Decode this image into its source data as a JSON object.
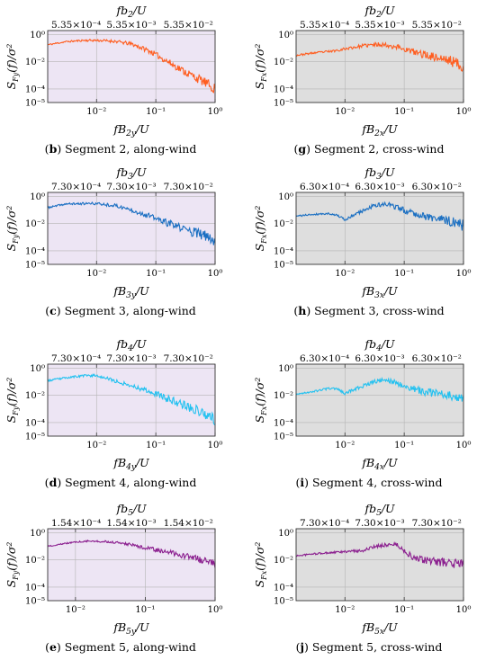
{
  "colors": {
    "along_bg": "#ede5f4",
    "cross_bg": "#dedede",
    "frame": "#333333",
    "grid": "#b5b5b5"
  },
  "chart_data": [
    {
      "id": "b",
      "type": "line",
      "scale": "log-log",
      "caption": {
        "letter": "b",
        "text": ") Segment 2, along-wind"
      },
      "xlabel": "fB2y/U",
      "ylabel": "SFy(f)/σ²",
      "top_label": "fb2/U",
      "background": "along",
      "x_ticks": [
        "10⁻²",
        "10⁻¹",
        "10⁰"
      ],
      "y_ticks": [
        "10⁰",
        "10⁻²",
        "10⁻⁴",
        "10⁻⁵"
      ],
      "top_ticks": [
        "5.35×10⁻⁴",
        "5.35×10⁻³",
        "5.35×10⁻²"
      ],
      "xlim": [
        0.0015,
        1
      ],
      "ylim": [
        1e-05,
        2
      ],
      "series": [
        {
          "color": "#ff5d1f",
          "noise": 0.4,
          "seed": 11,
          "x": [
            0.0015,
            0.003,
            0.006,
            0.01,
            0.02,
            0.04,
            0.08,
            0.15,
            0.3,
            0.6,
            1.0
          ],
          "y": [
            0.18,
            0.3,
            0.38,
            0.38,
            0.33,
            0.2,
            0.06,
            0.012,
            0.002,
            0.0004,
            0.0001
          ]
        }
      ]
    },
    {
      "id": "g",
      "type": "line",
      "scale": "log-log",
      "caption": {
        "letter": "g",
        "text": ") Segment 2, cross-wind"
      },
      "xlabel": "fB2x/U",
      "ylabel": "SFx(f)/σ²",
      "top_label": "fb2/U",
      "background": "cross",
      "x_ticks": [
        "10⁻²",
        "10⁻¹",
        "10⁰"
      ],
      "y_ticks": [
        "10⁰",
        "10⁻²",
        "10⁻⁴",
        "10⁻⁵"
      ],
      "top_ticks": [
        "5.35×10⁻⁴",
        "5.35×10⁻³",
        "5.35×10⁻²"
      ],
      "xlim": [
        0.0015,
        1
      ],
      "ylim": [
        1e-05,
        2
      ],
      "series": [
        {
          "color": "#ff5d1f",
          "noise": 0.45,
          "seed": 23,
          "x": [
            0.0015,
            0.003,
            0.006,
            0.01,
            0.02,
            0.04,
            0.08,
            0.15,
            0.3,
            0.6,
            1.0
          ],
          "y": [
            0.03,
            0.045,
            0.06,
            0.09,
            0.15,
            0.2,
            0.12,
            0.05,
            0.025,
            0.012,
            0.005
          ]
        }
      ]
    },
    {
      "id": "c",
      "type": "line",
      "scale": "log-log",
      "caption": {
        "letter": "c",
        "text": ") Segment 3, along-wind"
      },
      "xlabel": "fB3y/U",
      "ylabel": "SFy(f)/σ²",
      "top_label": "fb3/U",
      "background": "along",
      "x_ticks": [
        "10⁻²",
        "10⁻¹",
        "10⁰"
      ],
      "y_ticks": [
        "10⁰",
        "10⁻²",
        "10⁻⁴",
        "10⁻⁵"
      ],
      "top_ticks": [
        "7.30×10⁻⁴",
        "7.30×10⁻³",
        "7.30×10⁻²"
      ],
      "xlim": [
        0.0015,
        1
      ],
      "ylim": [
        1e-05,
        2
      ],
      "series": [
        {
          "color": "#1a6fc2",
          "noise": 0.45,
          "seed": 37,
          "x": [
            0.0015,
            0.003,
            0.006,
            0.01,
            0.02,
            0.04,
            0.08,
            0.15,
            0.3,
            0.6,
            1.0
          ],
          "y": [
            0.15,
            0.28,
            0.3,
            0.3,
            0.22,
            0.1,
            0.035,
            0.012,
            0.004,
            0.0015,
            0.0006
          ]
        }
      ]
    },
    {
      "id": "h",
      "type": "line",
      "scale": "log-log",
      "caption": {
        "letter": "h",
        "text": ") Segment 3, cross-wind"
      },
      "xlabel": "fB3x/U",
      "ylabel": "SFx(f)/σ²",
      "top_label": "fb3/U",
      "background": "cross",
      "x_ticks": [
        "10⁻²",
        "10⁻¹",
        "10⁰"
      ],
      "y_ticks": [
        "10⁰",
        "10⁻²",
        "10⁻⁴",
        "10⁻⁵"
      ],
      "top_ticks": [
        "6.30×10⁻⁴",
        "6.30×10⁻³",
        "6.30×10⁻²"
      ],
      "xlim": [
        0.0015,
        1
      ],
      "ylim": [
        1e-05,
        2
      ],
      "series": [
        {
          "color": "#1a6fc2",
          "noise": 0.45,
          "seed": 41,
          "x": [
            0.0015,
            0.003,
            0.006,
            0.008,
            0.01,
            0.015,
            0.03,
            0.05,
            0.1,
            0.2,
            0.4,
            0.7,
            1.0
          ],
          "y": [
            0.035,
            0.05,
            0.055,
            0.035,
            0.018,
            0.05,
            0.2,
            0.28,
            0.1,
            0.04,
            0.02,
            0.012,
            0.008
          ]
        }
      ]
    },
    {
      "id": "d",
      "type": "line",
      "scale": "log-log",
      "caption": {
        "letter": "d",
        "text": ") Segment 4, along-wind"
      },
      "xlabel": "fB4y/U",
      "ylabel": "SFy(f)/σ²",
      "top_label": "fb4/U",
      "background": "along",
      "x_ticks": [
        "10⁻²",
        "10⁻¹",
        "10⁰"
      ],
      "y_ticks": [
        "10⁰",
        "10⁻²",
        "10⁻⁴",
        "10⁻⁵"
      ],
      "top_ticks": [
        "7.30×10⁻⁴",
        "7.30×10⁻³",
        "7.30×10⁻²"
      ],
      "xlim": [
        0.0015,
        1
      ],
      "ylim": [
        1e-05,
        2
      ],
      "series": [
        {
          "color": "#22c1f0",
          "noise": 0.45,
          "seed": 53,
          "x": [
            0.0015,
            0.003,
            0.006,
            0.01,
            0.02,
            0.04,
            0.08,
            0.15,
            0.3,
            0.6,
            1.0
          ],
          "y": [
            0.12,
            0.2,
            0.28,
            0.3,
            0.12,
            0.05,
            0.02,
            0.006,
            0.002,
            0.0006,
            0.00015
          ]
        }
      ]
    },
    {
      "id": "i",
      "type": "line",
      "scale": "log-log",
      "caption": {
        "letter": "i",
        "text": ") Segment 4, cross-wind"
      },
      "xlabel": "fB4x/U",
      "ylabel": "SFx(f)/σ²",
      "top_label": "fb4/U",
      "background": "cross",
      "x_ticks": [
        "10⁻²",
        "10⁻¹",
        "10⁰"
      ],
      "y_ticks": [
        "10⁰",
        "10⁻²",
        "10⁻⁴",
        "10⁻⁵"
      ],
      "top_ticks": [
        "6.30×10⁻⁴",
        "6.30×10⁻³",
        "6.30×10⁻²"
      ],
      "xlim": [
        0.0015,
        1
      ],
      "ylim": [
        1e-05,
        2
      ],
      "series": [
        {
          "color": "#22c1f0",
          "noise": 0.45,
          "seed": 67,
          "x": [
            0.0015,
            0.003,
            0.006,
            0.008,
            0.01,
            0.015,
            0.03,
            0.05,
            0.1,
            0.2,
            0.4,
            0.7,
            1.0
          ],
          "y": [
            0.012,
            0.02,
            0.035,
            0.025,
            0.014,
            0.03,
            0.1,
            0.15,
            0.05,
            0.02,
            0.012,
            0.009,
            0.008
          ]
        }
      ]
    },
    {
      "id": "e",
      "type": "line",
      "scale": "log-log",
      "caption": {
        "letter": "e",
        "text": ") Segment 5, along-wind"
      },
      "xlabel": "fB5y/U",
      "ylabel": "SFy(f)/σ²",
      "top_label": "fb5/U",
      "background": "along",
      "x_ticks": [
        "10⁻²",
        "10⁻¹",
        "10⁰"
      ],
      "y_ticks": [
        "10⁰",
        "10⁻²",
        "10⁻⁴",
        "10⁻⁵"
      ],
      "top_ticks": [
        "1.54×10⁻⁴",
        "1.54×10⁻³",
        "1.54×10⁻²"
      ],
      "xlim": [
        0.004,
        1
      ],
      "ylim": [
        1e-05,
        2
      ],
      "series": [
        {
          "color": "#8b1f8f",
          "noise": 0.3,
          "seed": 79,
          "x": [
            0.004,
            0.008,
            0.015,
            0.03,
            0.06,
            0.1,
            0.2,
            0.4,
            0.7,
            1.0
          ],
          "y": [
            0.1,
            0.18,
            0.25,
            0.22,
            0.14,
            0.08,
            0.04,
            0.018,
            0.009,
            0.005
          ]
        }
      ]
    },
    {
      "id": "j",
      "type": "line",
      "scale": "log-log",
      "caption": {
        "letter": "j",
        "text": ") Segment 5, cross-wind"
      },
      "xlabel": "fB5x/U",
      "ylabel": "SFx(f)/σ²",
      "top_label": "fb5/U",
      "background": "cross",
      "x_ticks": [
        "10⁻²",
        "10⁻¹",
        "10⁰"
      ],
      "y_ticks": [
        "10⁰",
        "10⁻²",
        "10⁻⁴",
        "10⁻⁵"
      ],
      "top_ticks": [
        "7.30×10⁻⁴",
        "7.30×10⁻³",
        "7.30×10⁻²"
      ],
      "xlim": [
        0.0015,
        1
      ],
      "ylim": [
        1e-05,
        2
      ],
      "series": [
        {
          "color": "#8b1f8f",
          "noise": 0.4,
          "seed": 97,
          "x": [
            0.0015,
            0.003,
            0.006,
            0.01,
            0.02,
            0.04,
            0.07,
            0.1,
            0.15,
            0.3,
            0.6,
            1.0
          ],
          "y": [
            0.02,
            0.028,
            0.035,
            0.04,
            0.05,
            0.12,
            0.15,
            0.05,
            0.012,
            0.008,
            0.006,
            0.005
          ]
        }
      ]
    }
  ]
}
